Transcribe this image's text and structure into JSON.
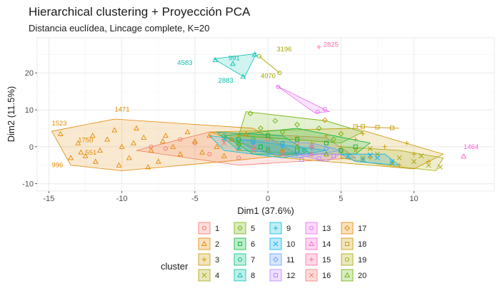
{
  "chart_data": {
    "type": "scatter",
    "title": "Hierarchical clustering + Proyección PCA",
    "subtitle": "Distancia euclídea, Lincage complete, K=20",
    "xlabel": "Dim1 (37.6%)",
    "ylabel": "Dim2 (11.5%)",
    "xlim": [
      -15.8,
      15.5
    ],
    "ylim": [
      -12.0,
      29.5
    ],
    "x_ticks": [
      -15,
      -10,
      -5,
      0,
      5,
      10
    ],
    "y_ticks": [
      -10,
      0,
      10,
      20
    ],
    "grid": true,
    "legend": {
      "title": "cluster",
      "placement": "bottom",
      "entries": [
        "1",
        "2",
        "3",
        "4",
        "5",
        "6",
        "7",
        "8",
        "9",
        "10",
        "11",
        "12",
        "13",
        "14",
        "15",
        "16",
        "17",
        "18",
        "19",
        "20"
      ]
    },
    "colors": [
      "#F8766D",
      "#E58700",
      "#C99800",
      "#A3A500",
      "#6BB100",
      "#00BA38",
      "#00BF7D",
      "#00C0AF",
      "#00BCD8",
      "#00B0F6",
      "#619CFF",
      "#B983FF",
      "#E76BF3",
      "#FD61D1",
      "#FF67A4",
      "#F8766D",
      "#E58700",
      "#C99800",
      "#A3A500",
      "#6BB100"
    ],
    "series": [
      {
        "name": "1",
        "hull": [
          [
            -9,
            -1
          ],
          [
            -4,
            4
          ],
          [
            4,
            2.5
          ],
          [
            6,
            -3
          ],
          [
            -2,
            -5
          ]
        ],
        "points": [
          [
            -7,
            -0.5
          ],
          [
            -5,
            1
          ],
          [
            -3,
            2
          ],
          [
            -1,
            0
          ],
          [
            1,
            -1
          ],
          [
            3,
            -2
          ],
          [
            2,
            1
          ],
          [
            -2,
            -3
          ],
          [
            0,
            2
          ],
          [
            -4,
            -2
          ],
          [
            5,
            -1
          ],
          [
            -6,
            2
          ],
          [
            -8,
            0
          ],
          [
            4,
            1
          ]
        ]
      },
      {
        "name": "2",
        "hull": [
          [
            -14.8,
            4.2
          ],
          [
            -10.5,
            7.5
          ],
          [
            -1,
            5
          ],
          [
            2,
            -2
          ],
          [
            -3,
            -4
          ],
          [
            -10,
            -6.5
          ],
          [
            -13.5,
            -5
          ]
        ],
        "points": [
          [
            -14.2,
            3.5
          ],
          [
            -13,
            1
          ],
          [
            -12.5,
            -2.5
          ],
          [
            -11.8,
            -4
          ],
          [
            -11,
            2
          ],
          [
            -10.5,
            4.5
          ],
          [
            -10,
            0
          ],
          [
            -9.5,
            -3
          ],
          [
            -9,
            5
          ],
          [
            -8.5,
            2.5
          ],
          [
            -8,
            -1
          ],
          [
            -7.5,
            -4
          ],
          [
            -7,
            3
          ],
          [
            -6.5,
            0
          ],
          [
            -6,
            -2
          ],
          [
            -5.5,
            4
          ],
          [
            -5,
            1.5
          ],
          [
            -4.5,
            -1.5
          ],
          [
            -4,
            3
          ],
          [
            -3.5,
            0
          ],
          [
            -3,
            -2.5
          ],
          [
            -2.5,
            2
          ],
          [
            -2,
            -0.5
          ],
          [
            -1.5,
            3.5
          ],
          [
            -11.5,
            -1
          ],
          [
            -12,
            3
          ],
          [
            -13.5,
            -3
          ],
          [
            -12.8,
            -1.5
          ],
          [
            -10.2,
            -5
          ],
          [
            -9.2,
            1
          ],
          [
            -8.2,
            -5.5
          ],
          [
            -7.2,
            1.5
          ]
        ]
      },
      {
        "name": "3",
        "hull": [
          [
            -4,
            4
          ],
          [
            6,
            5
          ],
          [
            12,
            -2
          ],
          [
            10,
            -6
          ],
          [
            1,
            -3
          ]
        ],
        "points": [
          [
            -2,
            3
          ],
          [
            0,
            3.5
          ],
          [
            2,
            2.5
          ],
          [
            4,
            3
          ],
          [
            6,
            2
          ],
          [
            8,
            0
          ],
          [
            10,
            -2
          ],
          [
            11,
            -4
          ],
          [
            9,
            -5
          ],
          [
            7,
            -3
          ],
          [
            5,
            0
          ],
          [
            3,
            1
          ],
          [
            1,
            -1
          ],
          [
            6.5,
            3.5
          ],
          [
            9.5,
            1
          ]
        ]
      },
      {
        "name": "4",
        "hull": [
          [
            5,
            0
          ],
          [
            9,
            -1
          ],
          [
            12,
            -3
          ],
          [
            11.5,
            -6.5
          ],
          [
            8,
            -5
          ],
          [
            5,
            -3
          ]
        ],
        "points": [
          [
            6,
            -1
          ],
          [
            7.5,
            -2
          ],
          [
            9,
            -3
          ],
          [
            10,
            -4
          ],
          [
            11,
            -5
          ],
          [
            11.8,
            -5.5
          ],
          [
            8.5,
            -4.5
          ],
          [
            6.5,
            -3
          ],
          [
            10.5,
            -2.5
          ],
          [
            7,
            -0.5
          ]
        ]
      },
      {
        "name": "5",
        "hull": [
          [
            -1.5,
            9.5
          ],
          [
            4,
            7
          ],
          [
            6.5,
            4
          ],
          [
            5,
            1
          ],
          [
            -2,
            3
          ]
        ],
        "points": [
          [
            -1.2,
            9
          ],
          [
            0.5,
            7
          ],
          [
            2,
            6
          ],
          [
            3.5,
            5
          ],
          [
            5,
            3.5
          ],
          [
            4.5,
            2
          ],
          [
            1,
            4
          ],
          [
            -0.5,
            5
          ]
        ]
      },
      {
        "name": "6",
        "hull": [
          [
            -3,
            3
          ],
          [
            2,
            5
          ],
          [
            7,
            1
          ],
          [
            6,
            -2
          ],
          [
            -1,
            -2
          ]
        ],
        "points": [
          [
            -2,
            2
          ],
          [
            0,
            3
          ],
          [
            2,
            2
          ],
          [
            4,
            1
          ],
          [
            6,
            0
          ],
          [
            5,
            -1
          ],
          [
            2,
            -1
          ],
          [
            -0.5,
            0
          ]
        ]
      },
      {
        "name": "7",
        "hull": [
          [
            -3.5,
            4
          ],
          [
            1,
            3
          ],
          [
            3,
            -2
          ],
          [
            -2,
            -1
          ]
        ],
        "points": [
          [
            -3,
            3
          ],
          [
            -1,
            2
          ],
          [
            1,
            1
          ],
          [
            2.5,
            -1
          ],
          [
            0,
            -0.5
          ],
          [
            -2,
            0.5
          ]
        ]
      },
      {
        "name": "8",
        "hull": [
          [
            -3.7,
            23.8
          ],
          [
            -0.8,
            25.2
          ],
          [
            -1.6,
            18.8
          ]
        ],
        "points": [
          [
            -3.6,
            23.5
          ],
          [
            -0.9,
            25
          ],
          [
            -1.7,
            19
          ],
          [
            -2.4,
            22.5
          ]
        ]
      },
      {
        "name": "9",
        "hull": [
          [
            -4,
            3
          ],
          [
            2,
            0
          ],
          [
            4,
            -1
          ],
          [
            1,
            -3
          ],
          [
            -3,
            -1
          ]
        ],
        "points": [
          [
            -3,
            2
          ],
          [
            -1,
            1
          ],
          [
            1,
            0
          ],
          [
            3,
            -0.5
          ],
          [
            0,
            -2
          ],
          [
            -2,
            -0.5
          ]
        ]
      },
      {
        "name": "10",
        "hull": [
          [
            5,
            -2
          ],
          [
            8,
            -2
          ],
          [
            9,
            -5
          ],
          [
            6,
            -4
          ]
        ],
        "points": [
          [
            5.5,
            -2.5
          ],
          [
            7,
            -2.2
          ],
          [
            8.5,
            -4
          ],
          [
            6.5,
            -3.5
          ],
          [
            7.5,
            -3
          ]
        ]
      },
      {
        "name": "11",
        "hull": [
          [
            -2,
            2
          ],
          [
            3,
            1
          ],
          [
            5,
            -1
          ],
          [
            2,
            -3
          ],
          [
            -1,
            -1
          ]
        ],
        "points": [
          [
            -1,
            1
          ],
          [
            1,
            0.5
          ],
          [
            3,
            0
          ],
          [
            4,
            -0.5
          ],
          [
            2,
            -2
          ],
          [
            0,
            -1
          ]
        ]
      },
      {
        "name": "12",
        "hull": [
          [
            2,
            -2
          ],
          [
            5,
            -2
          ],
          [
            4,
            -4
          ]
        ],
        "points": [
          [
            2.3,
            -3.5
          ],
          [
            4.5,
            -2.5
          ],
          [
            3.5,
            -3.2
          ]
        ]
      },
      {
        "name": "13",
        "hull": [
          [
            0.6,
            16.5
          ],
          [
            4.2,
            9.5
          ],
          [
            3.2,
            9.2
          ]
        ],
        "points": [
          [
            0.7,
            16.2
          ],
          [
            3.9,
            10.2
          ],
          [
            3.4,
            9.4
          ]
        ]
      },
      {
        "name": "14",
        "hull": [],
        "points": [
          [
            13.4,
            -2.6
          ]
        ]
      },
      {
        "name": "15",
        "hull": [],
        "points": [
          [
            3.5,
            27
          ]
        ]
      },
      {
        "name": "16",
        "hull": [],
        "points": [
          [
            -1,
            -1
          ],
          [
            1,
            -2
          ],
          [
            3,
            0
          ],
          [
            -3,
            1
          ]
        ]
      },
      {
        "name": "17",
        "hull": [],
        "points": [
          [
            3.9,
            7.2
          ]
        ]
      },
      {
        "name": "18",
        "hull": [
          [
            6,
            5.5
          ],
          [
            9,
            5
          ]
        ],
        "points": [
          [
            6,
            5.5
          ],
          [
            6.5,
            5.5
          ],
          [
            7.5,
            5.3
          ],
          [
            8.5,
            5.1
          ]
        ]
      },
      {
        "name": "19",
        "hull": [
          [
            -0.6,
            24.5
          ],
          [
            0.8,
            20
          ]
        ],
        "points": [
          [
            -0.6,
            24.5
          ],
          [
            0.8,
            20
          ]
        ]
      },
      {
        "name": "20",
        "hull": [],
        "points": [
          [
            -2,
            1
          ],
          [
            0,
            -1
          ],
          [
            2,
            0
          ],
          [
            4,
            -2
          ]
        ]
      }
    ],
    "labels": [
      {
        "text": "1523",
        "x": -14.8,
        "y": 5.8,
        "series": "2"
      },
      {
        "text": "1471",
        "x": -10.5,
        "y": 9.5,
        "series": "2"
      },
      {
        "text": "1750",
        "x": -13.0,
        "y": 1.2,
        "series": "2"
      },
      {
        "text": "551",
        "x": -12.5,
        "y": -2.2,
        "series": "2"
      },
      {
        "text": "996",
        "x": -14.8,
        "y": -5.5,
        "series": "2"
      },
      {
        "text": "4583",
        "x": -6.2,
        "y": 22.2,
        "series": "8"
      },
      {
        "text": "991",
        "x": -2.7,
        "y": 23.4,
        "series": "8"
      },
      {
        "text": "2883",
        "x": -3.4,
        "y": 17.3,
        "series": "8"
      },
      {
        "text": "3196",
        "x": 0.6,
        "y": 25.8,
        "series": "19"
      },
      {
        "text": "4070",
        "x": -0.5,
        "y": 18.6,
        "series": "19"
      },
      {
        "text": "2825",
        "x": 3.8,
        "y": 27.1,
        "series": "15"
      },
      {
        "text": "1464",
        "x": 13.4,
        "y": -0.6,
        "series": "14"
      }
    ]
  }
}
